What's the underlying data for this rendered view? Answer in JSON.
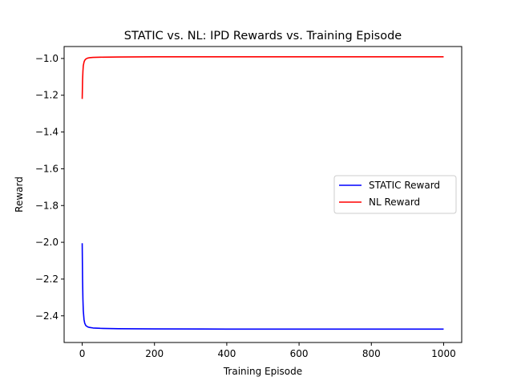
{
  "chart_data": {
    "type": "line",
    "title": "STATIC vs. NL: IPD Rewards vs. Training Episode",
    "xlabel": "Training Episode",
    "ylabel": "Reward",
    "xlim": [
      -50,
      1050
    ],
    "ylim": [
      -2.545,
      -0.935
    ],
    "xticks": [
      0,
      200,
      400,
      600,
      800,
      1000
    ],
    "yticks": [
      -1.0,
      -1.2,
      -1.4,
      -1.6,
      -1.8,
      -2.0,
      -2.2,
      -2.4
    ],
    "xtick_labels": [
      "0",
      "200",
      "400",
      "600",
      "800",
      "1000"
    ],
    "ytick_labels": [
      "−1.0",
      "−1.2",
      "−1.4",
      "−1.6",
      "−1.8",
      "−2.0",
      "−2.2",
      "−2.4"
    ],
    "grid": false,
    "legend_position": "center-right",
    "series": [
      {
        "name": "STATIC Reward",
        "color": "#0000ff",
        "x": [
          0,
          1,
          2,
          3,
          5,
          7,
          10,
          15,
          20,
          30,
          50,
          100,
          200,
          400,
          600,
          800,
          1000
        ],
        "y": [
          -2.005,
          -2.2,
          -2.31,
          -2.37,
          -2.42,
          -2.44,
          -2.453,
          -2.46,
          -2.463,
          -2.466,
          -2.468,
          -2.47,
          -2.471,
          -2.472,
          -2.472,
          -2.472,
          -2.472
        ]
      },
      {
        "name": "NL Reward",
        "color": "#ff0000",
        "x": [
          0,
          1,
          2,
          3,
          5,
          7,
          10,
          15,
          20,
          30,
          50,
          100,
          200,
          400,
          600,
          800,
          1000
        ],
        "y": [
          -1.22,
          -1.12,
          -1.07,
          -1.04,
          -1.02,
          -1.01,
          -1.003,
          -0.998,
          -0.996,
          -0.994,
          -0.993,
          -0.992,
          -0.991,
          -0.991,
          -0.991,
          -0.991,
          -0.991
        ]
      }
    ]
  }
}
